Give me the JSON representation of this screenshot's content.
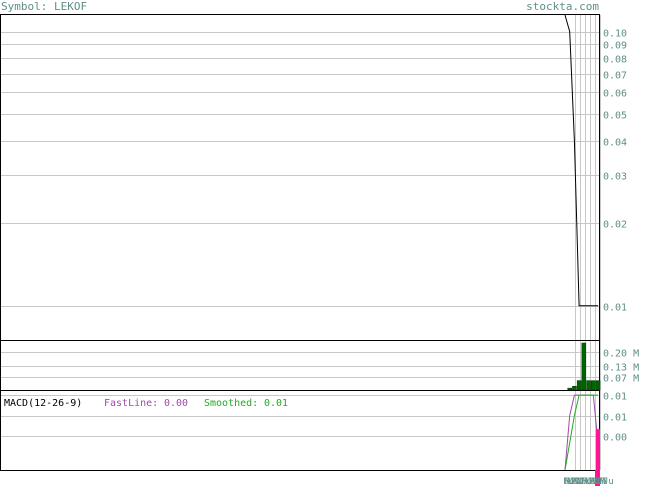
{
  "header": {
    "symbol_label": "Symbol: LEKOF",
    "site": "stockta.com"
  },
  "macd": {
    "label": "MACD(12-26-9)",
    "fast_label": "FastLine:",
    "fast_value": "0.00",
    "smooth_label": "Smoothed:",
    "smooth_value": "0.01"
  },
  "colors": {
    "price_line": "#000000",
    "volume_bar": "#006400",
    "macd_fast": "#9c4ca6",
    "macd_smooth": "#22aa22",
    "histogram": "#ff1493",
    "grid": "#c8c8c8",
    "axis_text": "#5f8f88"
  },
  "chart_data": [
    {
      "type": "line",
      "name": "price",
      "scale": "log",
      "ylim": [
        0.0075,
        0.115
      ],
      "y_ticks": [
        "0.10",
        "0.09",
        "0.08",
        "0.07",
        "0.06",
        "0.05",
        "0.04",
        "0.03",
        "0.02",
        "0.01"
      ],
      "y_tick_values": [
        0.1,
        0.09,
        0.08,
        0.07,
        0.06,
        0.05,
        0.04,
        0.03,
        0.02,
        0.01
      ],
      "values": [
        0.14,
        0.1,
        0.04,
        0.01,
        0.01,
        0.01,
        0.01,
        0.01
      ]
    },
    {
      "type": "bar",
      "name": "volume",
      "ylim": [
        0,
        0.25
      ],
      "y_ticks": [
        "0.20 M",
        "0.13 M",
        "0.07 M"
      ],
      "y_tick_values": [
        0.2,
        0.13,
        0.07
      ],
      "values": [
        0,
        0.01,
        0.02,
        0.05,
        0.25,
        0.05,
        0.05,
        0.05
      ]
    },
    {
      "type": "line",
      "name": "macd",
      "ylim": [
        -0.015,
        0.014
      ],
      "y_ticks": [
        "0.01",
        "0.01",
        "0.00"
      ],
      "y_tick_values": [
        0.0125,
        0.005,
        -0.0025
      ],
      "series": [
        {
          "name": "FastLine",
          "values": [
            -0.015,
            0.005,
            0.0125,
            0.0125,
            0.0125,
            0.0125,
            0.0125,
            -0.005
          ]
        },
        {
          "name": "Smoothed",
          "values": [
            -0.015,
            -0.005,
            0.005,
            0.0125,
            0.0125,
            0.0125,
            0.0125,
            0.0125
          ]
        }
      ],
      "histogram": [
        0,
        0,
        0,
        0,
        0,
        0,
        0,
        -0.015
      ]
    }
  ],
  "x_axis": {
    "tick_labels": [
      "F",
      "M",
      "A",
      "M",
      "J",
      "J",
      "A",
      "S",
      "O",
      "N",
      "D",
      "J",
      "F",
      "M",
      "A",
      "M",
      "J",
      "J",
      "A",
      "S",
      "O",
      "N",
      "D",
      "J",
      "F",
      "M",
      "A",
      "Ju"
    ]
  }
}
